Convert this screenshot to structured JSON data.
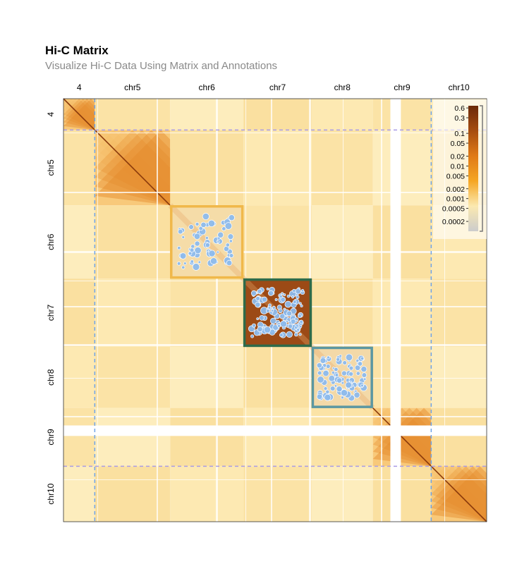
{
  "title": "Hi-C Matrix",
  "subtitle": "Visualize Hi-C Data Using Matrix and Annotations",
  "chart_data": {
    "type": "heatmap",
    "title": "Hi-C Matrix",
    "subtitle": "Visualize Hi-C Data Using Matrix and Annotations",
    "chromosomes": [
      {
        "name": "chr4",
        "label": "4",
        "length": 44,
        "level": 0.7
      },
      {
        "name": "chr5",
        "label": "chr5",
        "length": 106,
        "level": 0.6
      },
      {
        "name": "chr6",
        "label": "chr6",
        "length": 103,
        "level": 0.5
      },
      {
        "name": "chr7",
        "label": "chr7",
        "length": 96,
        "level": 0.5
      },
      {
        "name": "chr8",
        "label": "chr8",
        "length": 86,
        "level": 0.5
      },
      {
        "name": "chr9",
        "label": "chr9",
        "length": 82,
        "level": 0.6
      },
      {
        "name": "chr10",
        "label": "chr10",
        "length": 78,
        "level": 0.7
      }
    ],
    "legend": {
      "scale": "log",
      "ticks": [
        "0.6",
        "0.3",
        "0.1",
        "0.05",
        "0.02",
        "0.01",
        "0.005",
        "0.002",
        "0.001",
        "0.0005",
        "0.0002"
      ],
      "range": [
        0.0001,
        0.7
      ],
      "placement": "top-right",
      "colors": [
        "#cccccc",
        "#fbe9b0",
        "#f5a623",
        "#e07a16",
        "#a64d10",
        "#6b2a0a"
      ]
    },
    "highlight_regions": [
      {
        "chrom": "chr6",
        "border_color": "#f0b84a",
        "fill": "#f5dca8",
        "points": 70
      },
      {
        "chrom": "chr7",
        "border_color": "#2e6b4a",
        "fill": "#9c4a16",
        "points": 120
      },
      {
        "chrom": "chr8",
        "border_color": "#5b97a2",
        "fill": "#f3d9a8",
        "points": 90
      }
    ],
    "dashed_lines": [
      {
        "chrom": "chr4",
        "position": "end",
        "orientation": "horizontal",
        "color": "#a99be6"
      },
      {
        "chrom": "chr9",
        "position": "end",
        "orientation": "horizontal",
        "color": "#a99be6"
      },
      {
        "chrom": "chr4",
        "position": "end",
        "orientation": "vertical",
        "color": "#6fa4e8"
      },
      {
        "chrom": "chr9",
        "position": "end",
        "orientation": "vertical",
        "color": "#6fa4e8"
      }
    ],
    "point_color": "#8dbbec"
  }
}
